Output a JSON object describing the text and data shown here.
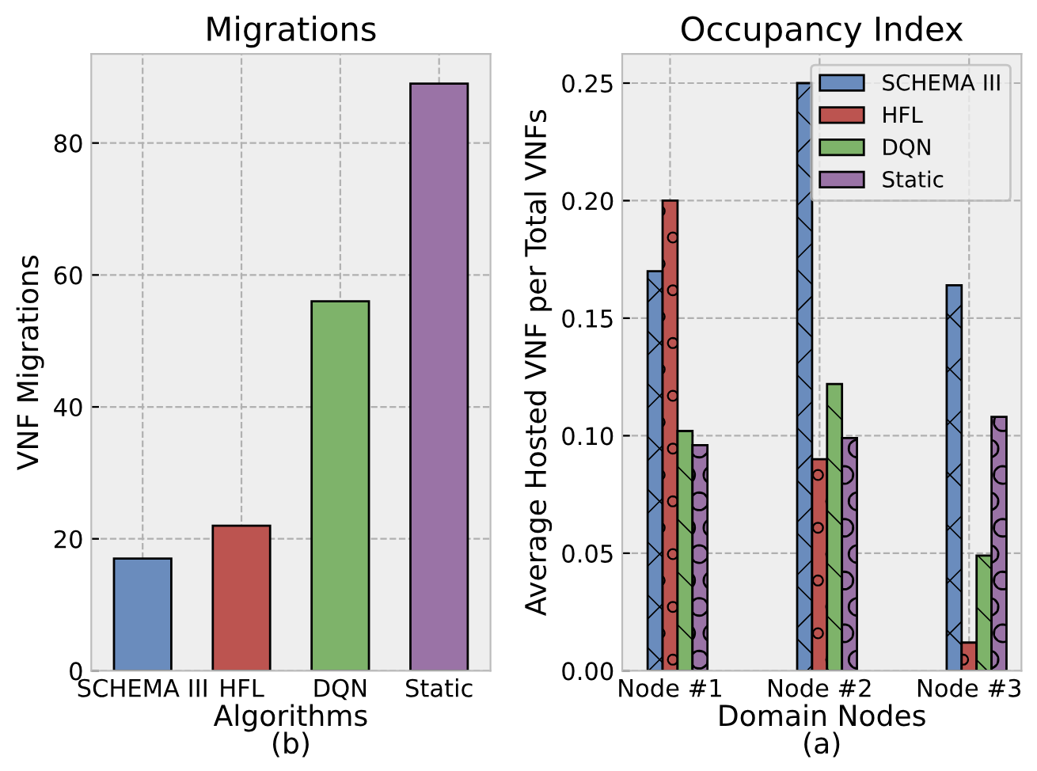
{
  "chart_data": [
    {
      "type": "bar",
      "title": "Migrations",
      "xlabel": "Algorithms\n(b)",
      "ylabel": "VNF Migrations",
      "categories": [
        "SCHEMA III",
        "HFL",
        "DQN",
        "Static"
      ],
      "values": [
        17,
        22,
        56,
        89
      ],
      "colors": [
        "#6a8cbd",
        "#bc5450",
        "#7eb36a",
        "#9a73a6"
      ],
      "ylim": [
        0,
        93.5
      ],
      "yticks": [
        0,
        20,
        40,
        60,
        80
      ],
      "grid": true
    },
    {
      "type": "bar",
      "title": "Occupancy Index",
      "xlabel": "Domain Nodes\n(a)",
      "ylabel": "Average Hosted VNF per Total VNFs",
      "categories": [
        "Node #1",
        "Node #2",
        "Node #3"
      ],
      "series": [
        {
          "name": "SCHEMA III",
          "color": "#6a8cbd",
          "values": [
            0.17,
            0.25,
            0.164
          ]
        },
        {
          "name": "HFL",
          "color": "#bc5450",
          "values": [
            0.2,
            0.09,
            0.012
          ]
        },
        {
          "name": "DQN",
          "color": "#7eb36a",
          "values": [
            0.102,
            0.122,
            0.049
          ]
        },
        {
          "name": "Static",
          "color": "#9a73a6",
          "values": [
            0.096,
            0.099,
            0.108
          ]
        }
      ],
      "ylim": [
        0,
        0.2624
      ],
      "yticks": [
        {
          "value": 0,
          "label": "0.00"
        },
        {
          "value": 0.05,
          "label": "0.05"
        },
        {
          "value": 0.1,
          "label": "0.10"
        },
        {
          "value": 0.15,
          "label": "0.15"
        },
        {
          "value": 0.2,
          "label": "0.20"
        },
        {
          "value": 0.25,
          "label": "0.25"
        }
      ],
      "grid": true,
      "legend": "top right"
    }
  ]
}
